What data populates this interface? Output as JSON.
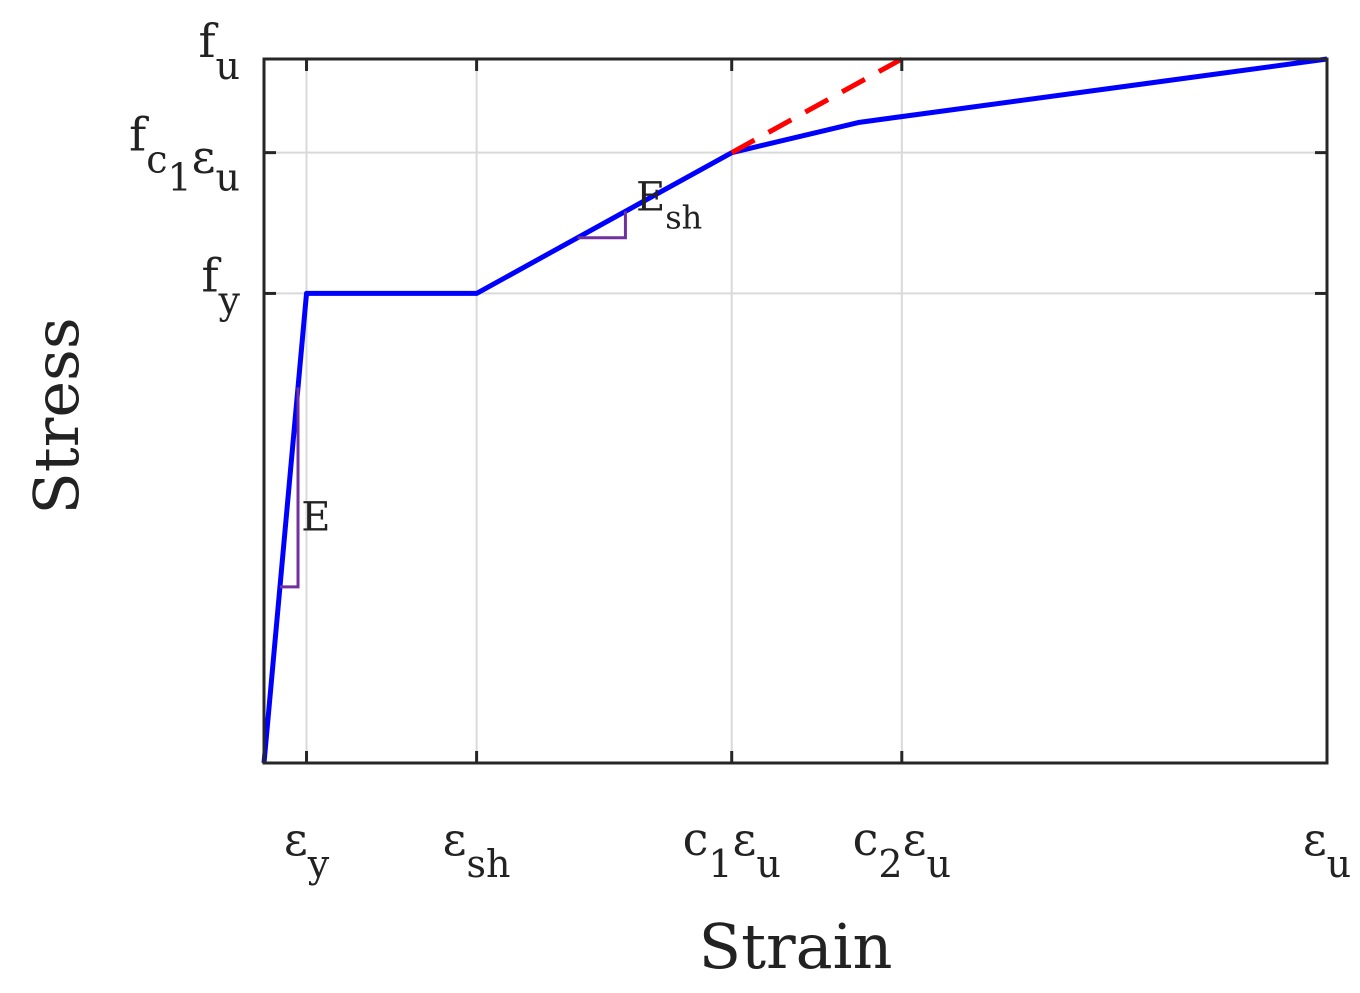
{
  "chart_data": {
    "type": "line",
    "xlabel": "Strain",
    "ylabel": "Stress",
    "xlim": [
      0,
      10
    ],
    "ylim": [
      0,
      10
    ],
    "grid": true,
    "x_ticks": [
      {
        "value": 0.4,
        "base": "ε",
        "sub": "y"
      },
      {
        "value": 2.0,
        "base": "ε",
        "sub": "sh"
      },
      {
        "value": 4.4,
        "base": "c",
        "sub": "1",
        "base2": "ε",
        "sub2": "u"
      },
      {
        "value": 6.0,
        "base": "c",
        "sub": "2",
        "base2": "ε",
        "sub2": "u"
      },
      {
        "value": 10.0,
        "base": "ε",
        "sub": "u"
      }
    ],
    "y_ticks": [
      {
        "value": 6.67,
        "base": "f",
        "sub": "y"
      },
      {
        "value": 8.67,
        "base": "f",
        "sub": "c",
        "sub_sub": "1",
        "sub_after": "ε",
        "sub_after_sub": "u"
      },
      {
        "value": 10.0,
        "base": "f",
        "sub": "u"
      }
    ],
    "series": [
      {
        "style": "solid",
        "color": "#0000ff",
        "x": [
          0,
          0.4,
          2.0,
          4.4,
          5.6,
          10.0
        ],
        "y": [
          0,
          6.67,
          6.67,
          8.67,
          9.1,
          10.0
        ]
      },
      {
        "style": "dashed",
        "color": "#ff0000",
        "x": [
          4.4,
          6.0
        ],
        "y": [
          8.67,
          10.0
        ]
      }
    ],
    "annotations": [
      {
        "base": "E",
        "sub": "",
        "x": 0.35,
        "y": 3.3,
        "color": "#7030a0"
      },
      {
        "base": "E",
        "sub": "sh",
        "x": 3.5,
        "y": 7.85,
        "color": "#7030a0"
      }
    ]
  }
}
